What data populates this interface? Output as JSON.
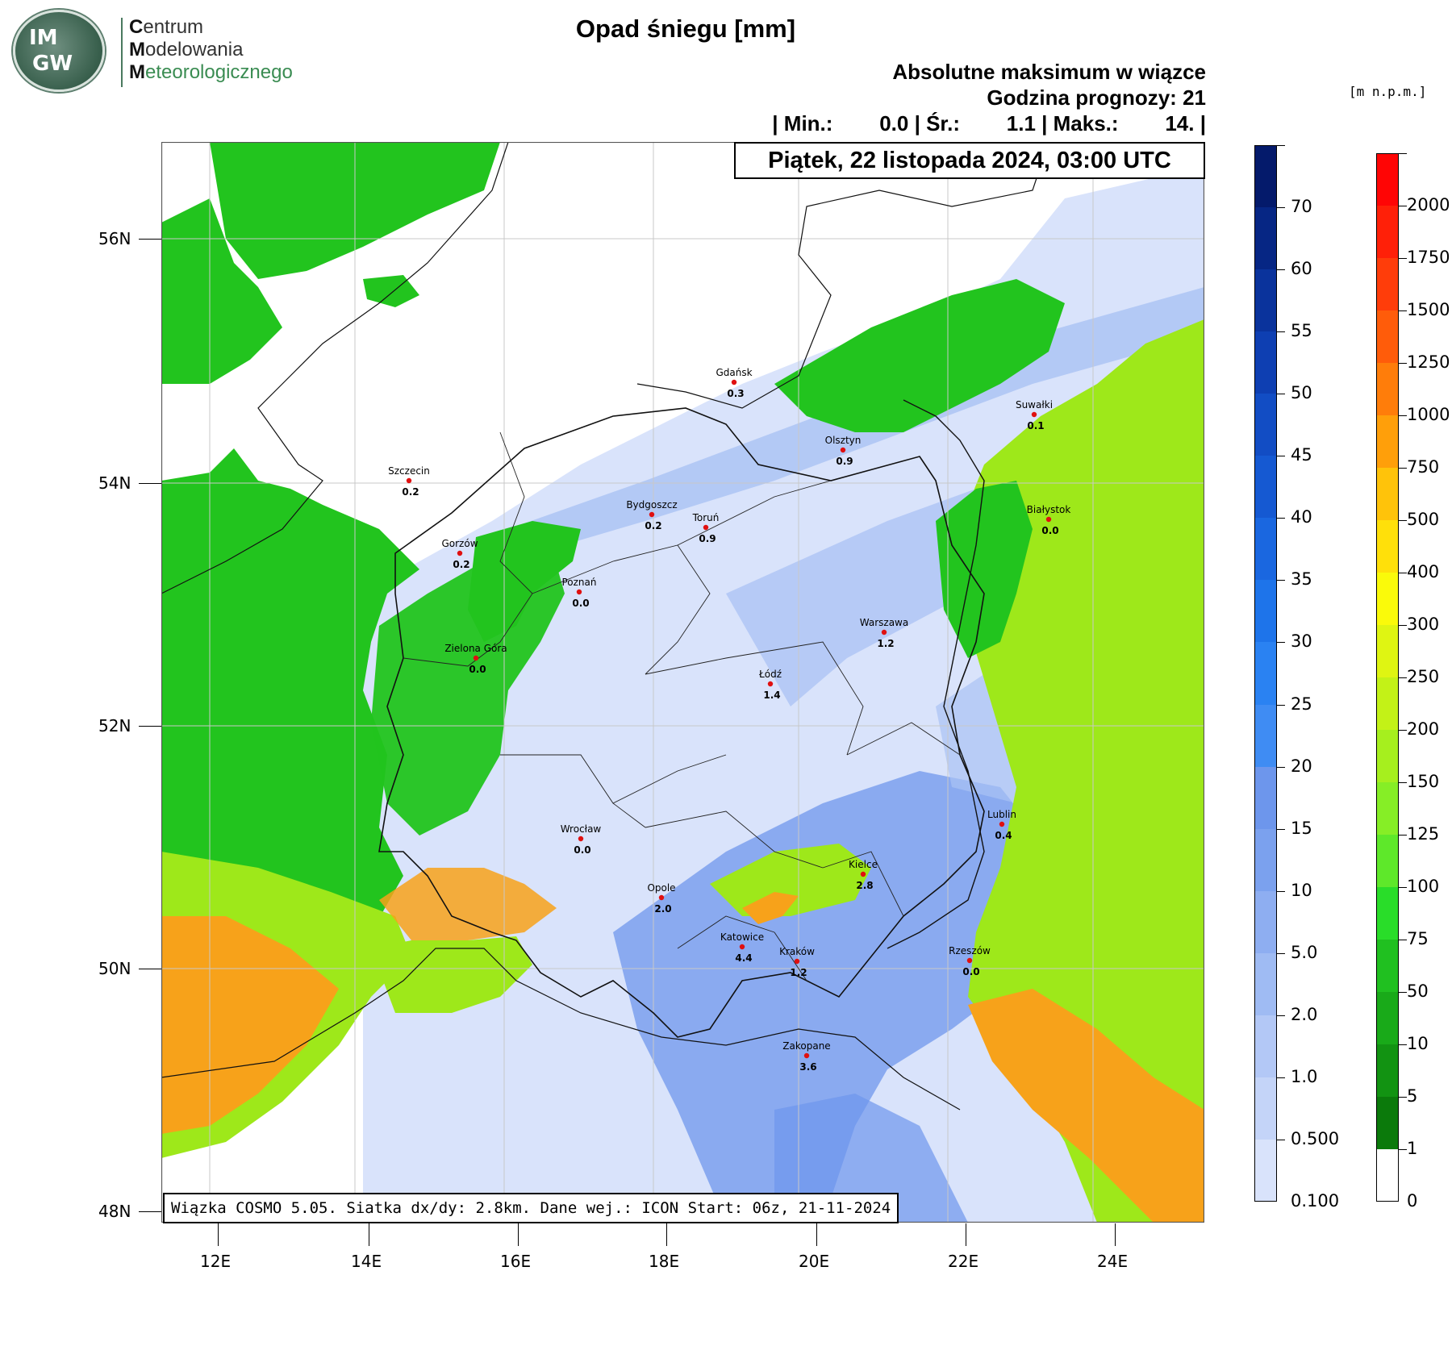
{
  "logo": {
    "initials_top": "IM",
    "initials_bottom": "GW",
    "line1_first": "C",
    "line1_rest": "entrum",
    "line2_first": "M",
    "line2_rest": "odelowania",
    "line3_first": "M",
    "line3_rest": "eteorologicznego"
  },
  "header": {
    "title": "Opad śniegu [mm]",
    "subtitle1": "Absolutne maksimum w wiązce",
    "subtitle2": "Godzina prognozy: 21",
    "stats": "| Min.:        0.0 | Śr.:        1.1 | Maks.:        14. |",
    "date": "Piątek, 22 listopada 2024, 03:00 UTC"
  },
  "footer": "Wiązka COSMO 5.05. Siatka dx/dy: 2.8km. Dane wej.: ICON Start: 06z, 21-11-2024",
  "map": {
    "lon_labels": [
      "12E",
      "14E",
      "16E",
      "18E",
      "20E",
      "22E",
      "24E"
    ],
    "lat_labels": [
      "56N",
      "54N",
      "52N",
      "50N",
      "48N"
    ],
    "cities": [
      {
        "name": "Gdańsk",
        "value": "0.3"
      },
      {
        "name": "Olsztyn",
        "value": "0.9"
      },
      {
        "name": "Suwałki",
        "value": "0.1"
      },
      {
        "name": "Szczecin",
        "value": "0.2"
      },
      {
        "name": "Bydgoszcz",
        "value": "0.2"
      },
      {
        "name": "Toruń",
        "value": "0.9"
      },
      {
        "name": "Białystok",
        "value": "0.0"
      },
      {
        "name": "Gorzów",
        "value": "0.2"
      },
      {
        "name": "Poznań",
        "value": "0.0"
      },
      {
        "name": "Warszawa",
        "value": "1.2"
      },
      {
        "name": "Zielona Góra",
        "value": "0.0"
      },
      {
        "name": "Łódź",
        "value": "1.4"
      },
      {
        "name": "Wrocław",
        "value": "0.0"
      },
      {
        "name": "Lublin",
        "value": "0.4"
      },
      {
        "name": "Kielce",
        "value": "2.8"
      },
      {
        "name": "Opole",
        "value": "2.0"
      },
      {
        "name": "Katowice",
        "value": "4.4"
      },
      {
        "name": "Kraków",
        "value": "1.2"
      },
      {
        "name": "Rzeszów",
        "value": "0.0"
      },
      {
        "name": "Zakopane",
        "value": "3.6"
      }
    ],
    "colors": {
      "snow_light": "#d9e3fb",
      "snow_mid": "#a9c2f4",
      "snow_dark": "#8aaaf0",
      "terrain_low": "#22c41e",
      "terrain_mid": "#9ee81a",
      "terrain_high": "#f7a21a"
    }
  },
  "snow_colorbar": {
    "labels": [
      "0.100",
      "0.500",
      "1.0",
      "2.0",
      "5.0",
      "10",
      "15",
      "20",
      "25",
      "30",
      "35",
      "40",
      "45",
      "50",
      "55",
      "60",
      "70"
    ],
    "colors": [
      "#d9e3fb",
      "#c4d4f8",
      "#b3c8f6",
      "#9fbbf3",
      "#8eaef1",
      "#7ba1ee",
      "#6d96ec",
      "#3f8cf3",
      "#2a82f2",
      "#1e74ea",
      "#1a67e0",
      "#1559d2",
      "#124dc4",
      "#0e3fb2",
      "#0a339c",
      "#062684",
      "#041a6b"
    ]
  },
  "elev_colorbar": {
    "unit": "[m n.p.m.]",
    "labels": [
      "0",
      "1",
      "5",
      "10",
      "50",
      "75",
      "100",
      "125",
      "150",
      "200",
      "250",
      "300",
      "400",
      "500",
      "750",
      "1000",
      "1250",
      "1500",
      "1750",
      "2000"
    ],
    "colors": [
      "#ffffff",
      "#0b7a0b",
      "#129312",
      "#19aa19",
      "#20c020",
      "#29dd29",
      "#5ee82a",
      "#86ee26",
      "#a6ef1e",
      "#c3f217",
      "#dff512",
      "#fafa0a",
      "#ffe00a",
      "#ffc30a",
      "#ff9f0a",
      "#ff7d0a",
      "#ff5c0a",
      "#ff3d0a",
      "#ff2008",
      "#ff0505"
    ]
  }
}
